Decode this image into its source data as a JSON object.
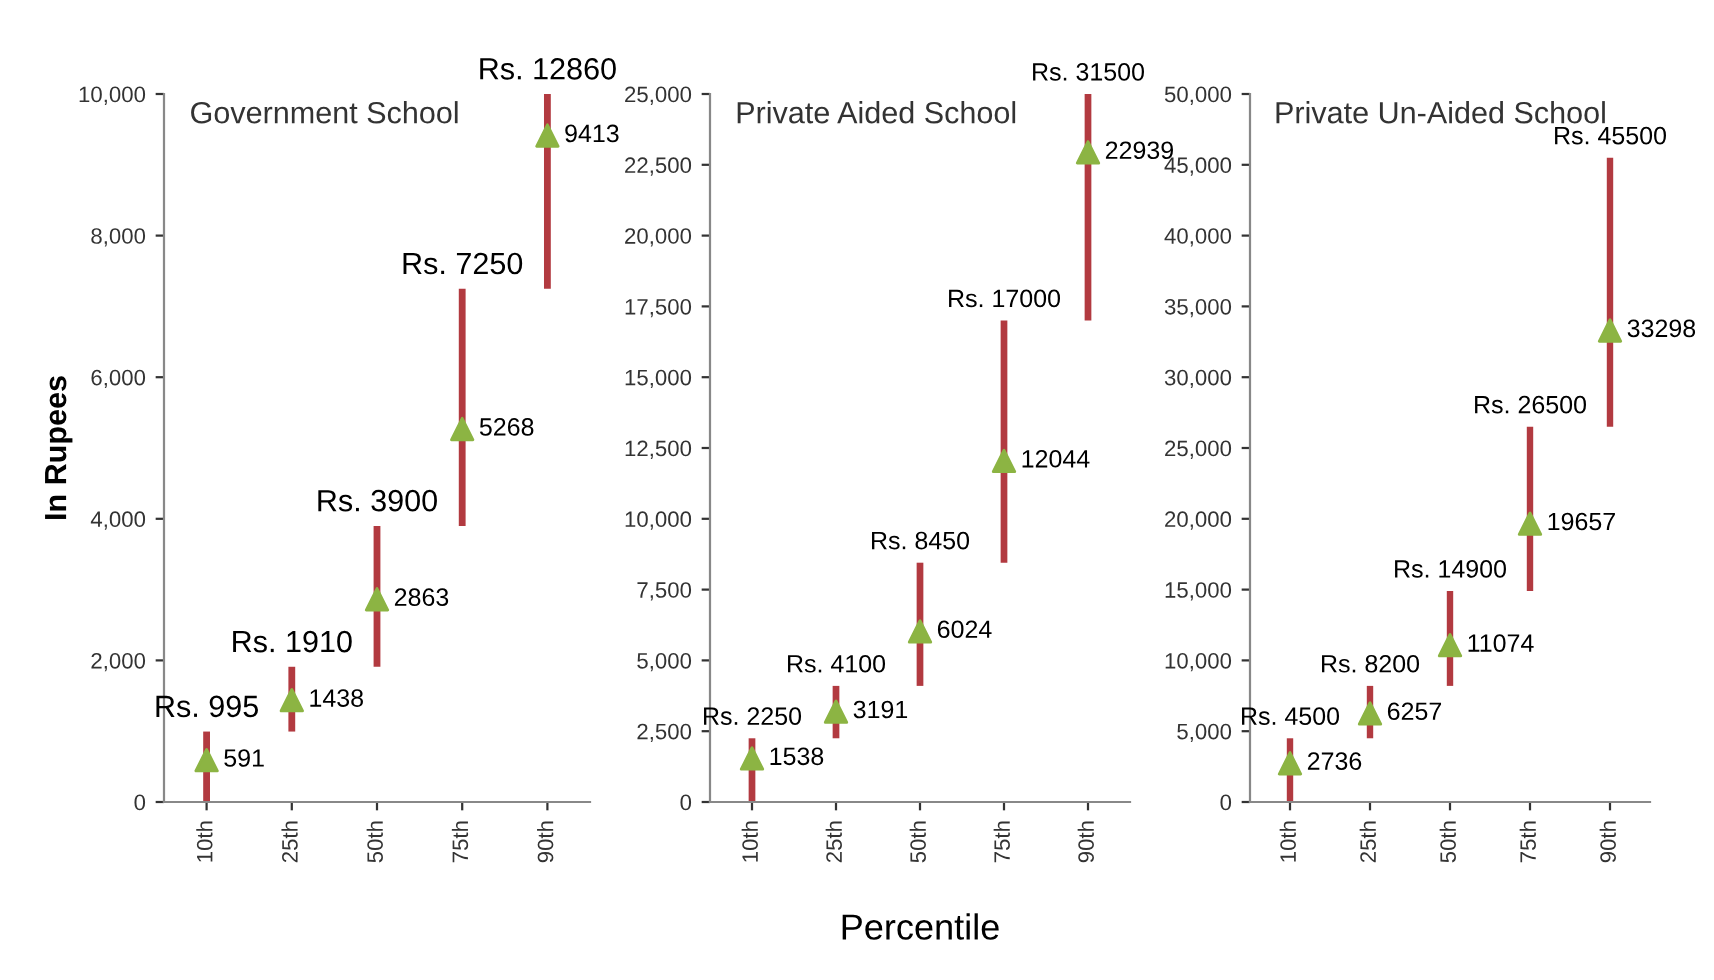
{
  "chart_data": [
    {
      "type": "bar",
      "title": "Government School",
      "ylabel": "In Rupees",
      "categories": [
        "10th",
        "25th",
        "50th",
        "75th",
        "90th"
      ],
      "ylim": [
        0,
        10000
      ],
      "yticks": [
        0,
        {
          "value": 2000,
          "label": "2,000"
        },
        {
          "value": 4000,
          "label": "4,000"
        },
        {
          "value": 6000,
          "label": "6,000"
        },
        {
          "value": 8000,
          "label": "8,000"
        },
        {
          "value": 10000,
          "label": "10,000"
        }
      ],
      "grid": false,
      "marker": "triangle",
      "series": [
        {
          "color": "#b23a40",
          "base": [
            0,
            995,
            1910,
            3900,
            7250
          ],
          "values": [
            995,
            915,
            1990,
            3350,
            2750
          ]
        },
        {
          "type": "scatter",
          "color": "#8cb443",
          "values": [
            591,
            1438,
            2863,
            5268,
            9413
          ],
          "value_labels": [
            "591",
            "1438",
            "2863",
            "5268",
            "9413"
          ]
        }
      ],
      "annotations": [
        {
          "text": "Rs. 995",
          "x": "10th",
          "y": 995
        },
        {
          "text": "Rs. 1910",
          "x": "25th",
          "y": 1910
        },
        {
          "text": "Rs. 3900",
          "x": "50th",
          "y": 3900
        },
        {
          "text": "Rs. 7250",
          "x": "75th",
          "y": 7250
        },
        {
          "text": "Rs. 12860",
          "x": "90th",
          "y": 10000
        }
      ]
    },
    {
      "type": "bar",
      "title": "Private Aided School",
      "xlabel": "Percentile",
      "categories": [
        "10th",
        "25th",
        "50th",
        "75th",
        "90th"
      ],
      "ylim": [
        0,
        25000
      ],
      "yticks": [
        0,
        {
          "value": 2500,
          "label": "2,500"
        },
        {
          "value": 5000,
          "label": "5,000"
        },
        {
          "value": 7500,
          "label": "7,500"
        },
        {
          "value": 10000,
          "label": "10,000"
        },
        {
          "value": 12500,
          "label": "12,500"
        },
        {
          "value": 15000,
          "label": "15,000"
        },
        {
          "value": 17500,
          "label": "17,500"
        },
        {
          "value": 20000,
          "label": "20,000"
        },
        {
          "value": 22500,
          "label": "22,500"
        },
        {
          "value": 25000,
          "label": "25,000"
        }
      ],
      "grid": false,
      "marker": "triangle",
      "series": [
        {
          "color": "#b23a40",
          "base": [
            0,
            2250,
            4100,
            8450,
            17000
          ],
          "values": [
            2250,
            1850,
            4350,
            8550,
            8000
          ]
        },
        {
          "type": "scatter",
          "color": "#8cb443",
          "values": [
            1538,
            3191,
            6024,
            12044,
            22939
          ],
          "value_labels": [
            "1538",
            "3191",
            "6024",
            "12044",
            "22939"
          ]
        }
      ],
      "annotations": [
        {
          "text": "Rs. 2250",
          "x": "10th",
          "y": 2250
        },
        {
          "text": "Rs. 4100",
          "x": "25th",
          "y": 4100
        },
        {
          "text": "Rs. 8450",
          "x": "50th",
          "y": 8450
        },
        {
          "text": "Rs. 17000",
          "x": "75th",
          "y": 17000
        },
        {
          "text": "Rs. 31500",
          "x": "90th",
          "y": 25000
        }
      ]
    },
    {
      "type": "bar",
      "title": "Private Un-Aided School",
      "categories": [
        "10th",
        "25th",
        "50th",
        "75th",
        "90th"
      ],
      "ylim": [
        0,
        50000
      ],
      "yticks": [
        0,
        {
          "value": 5000,
          "label": "5,000"
        },
        {
          "value": 10000,
          "label": "10,000"
        },
        {
          "value": 15000,
          "label": "15,000"
        },
        {
          "value": 20000,
          "label": "20,000"
        },
        {
          "value": 25000,
          "label": "25,000"
        },
        {
          "value": 30000,
          "label": "30,000"
        },
        {
          "value": 35000,
          "label": "35,000"
        },
        {
          "value": 40000,
          "label": "40,000"
        },
        {
          "value": 45000,
          "label": "45,000"
        },
        {
          "value": 50000,
          "label": "50,000"
        }
      ],
      "grid": false,
      "marker": "triangle",
      "series": [
        {
          "color": "#b23a40",
          "base": [
            0,
            4500,
            8200,
            14900,
            26500
          ],
          "values": [
            4500,
            3700,
            6700,
            11600,
            19000
          ]
        },
        {
          "type": "scatter",
          "color": "#8cb443",
          "values": [
            2736,
            6257,
            11074,
            19657,
            33298
          ],
          "value_labels": [
            "2736",
            "6257",
            "11074",
            "19657",
            "33298"
          ]
        }
      ],
      "annotations": [
        {
          "text": "Rs. 4500",
          "x": "10th",
          "y": 4500
        },
        {
          "text": "Rs. 8200",
          "x": "25th",
          "y": 8200
        },
        {
          "text": "Rs. 14900",
          "x": "50th",
          "y": 14900
        },
        {
          "text": "Rs. 26500",
          "x": "75th",
          "y": 26500
        },
        {
          "text": "Rs. 45500",
          "x": "90th",
          "y": 45500
        }
      ]
    }
  ]
}
